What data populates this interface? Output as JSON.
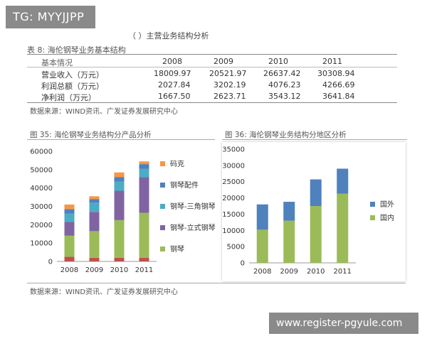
{
  "badge": "TG: MYYJJPP",
  "heading": "（  ）主营业务结构分析",
  "table": {
    "caption": "表 8:  海伦钢琴业务基本结构",
    "header": [
      "基本情况",
      "2008",
      "2009",
      "2010",
      "2011"
    ],
    "rows": [
      [
        "营业收入（万元）",
        "18009.97",
        "20521.97",
        "26637.42",
        "30308.94"
      ],
      [
        "利润总额（万元）",
        "2027.84",
        "3202.19",
        "4076.23",
        "4266.69"
      ],
      [
        "净利润（万元）",
        "1667.50",
        "2623.71",
        "3543.12",
        "3641.84"
      ]
    ],
    "source": "数据来源：WIND资讯、广发证券发展研究中心"
  },
  "fig35": {
    "title": "图 35:  海伦钢琴业务结构分产品分析"
  },
  "fig36": {
    "title": "图 36:  海伦钢琴业务结构分地区分析"
  },
  "bottom_source": "数据来源：WIND资讯、广发证券发展研究中心",
  "watermark": "www.register-pgyule.com",
  "chart_data": [
    {
      "type": "bar",
      "stacked": true,
      "categories": [
        "2008",
        "2009",
        "2010",
        "2011"
      ],
      "ylim": [
        0,
        60000
      ],
      "yticks": [
        "0",
        "10000",
        "20000",
        "30000",
        "40000",
        "50000",
        "60000"
      ],
      "legend_position": "right",
      "series": [
        {
          "name": "钢琴",
          "color": "#9bbb59",
          "values": [
            2500,
            2000,
            2000,
            2000
          ]
        },
        {
          "name": "钢琴-立式钢琴",
          "color": "#9bbb59",
          "values": [
            11500,
            14500,
            20500,
            24500
          ]
        },
        {
          "name": "钢琴-立式钢琴",
          "color": "#8064a2",
          "values": [
            7500,
            10500,
            16000,
            19500
          ]
        },
        {
          "name": "钢琴-三角钢琴",
          "color": "#4bacc6",
          "values": [
            4500,
            5000,
            5000,
            4500
          ]
        },
        {
          "name": "钢琴配件",
          "color": "#4f81bd",
          "values": [
            2500,
            2000,
            2500,
            2500
          ]
        },
        {
          "name": "码克",
          "color": "#f79646",
          "values": [
            2500,
            1500,
            2500,
            1500
          ]
        }
      ],
      "series_colors": {
        "base": "#c0504d"
      },
      "legend": [
        {
          "name": "码克",
          "color": "#f79646"
        },
        {
          "name": "钢琴配件",
          "color": "#4f81bd"
        },
        {
          "name": "钢琴-三角钢琴",
          "color": "#4bacc6"
        },
        {
          "name": "钢琴-立式钢琴",
          "color": "#8064a2"
        },
        {
          "name": "钢琴",
          "color": "#9bbb59"
        }
      ]
    },
    {
      "type": "bar",
      "stacked": true,
      "categories": [
        "2008",
        "2009",
        "2010",
        "2011"
      ],
      "ylim": [
        0,
        35000
      ],
      "yticks": [
        "0",
        "5000",
        "10000",
        "15000",
        "20000",
        "25000",
        "30000",
        "35000"
      ],
      "legend_position": "right",
      "series": [
        {
          "name": "国内",
          "color": "#9bbb59",
          "values": [
            10200,
            13000,
            17500,
            21300
          ]
        },
        {
          "name": "国外",
          "color": "#4f81bd",
          "values": [
            7800,
            5800,
            8200,
            7700
          ]
        }
      ],
      "legend": [
        {
          "name": "国外",
          "color": "#4f81bd"
        },
        {
          "name": "国内",
          "color": "#9bbb59"
        }
      ]
    }
  ]
}
